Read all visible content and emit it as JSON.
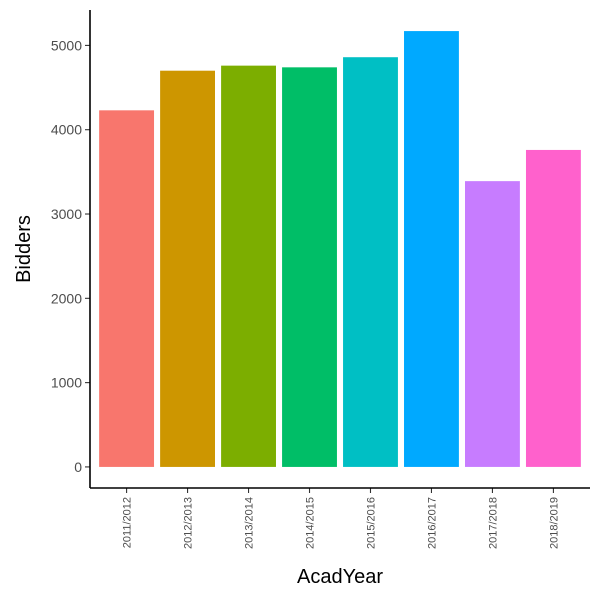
{
  "chart_data": {
    "type": "bar",
    "title": "",
    "xlabel": "AcadYear",
    "ylabel": "Bidders",
    "categories": [
      "2011/2012",
      "2012/2013",
      "2013/2014",
      "2014/2015",
      "2015/2016",
      "2016/2017",
      "2017/2018",
      "2018/2019"
    ],
    "values": [
      4230,
      4700,
      4760,
      4740,
      4860,
      5170,
      3390,
      3760
    ],
    "colors": [
      "#F8766D",
      "#CD9600",
      "#7CAE00",
      "#00BE67",
      "#00BFC4",
      "#00A9FF",
      "#C77CFF",
      "#FF61CC"
    ],
    "yticks": [
      0,
      1000,
      2000,
      3000,
      4000,
      5000
    ],
    "ylim": [
      -250,
      5420
    ],
    "grid": false,
    "legend": "none"
  }
}
